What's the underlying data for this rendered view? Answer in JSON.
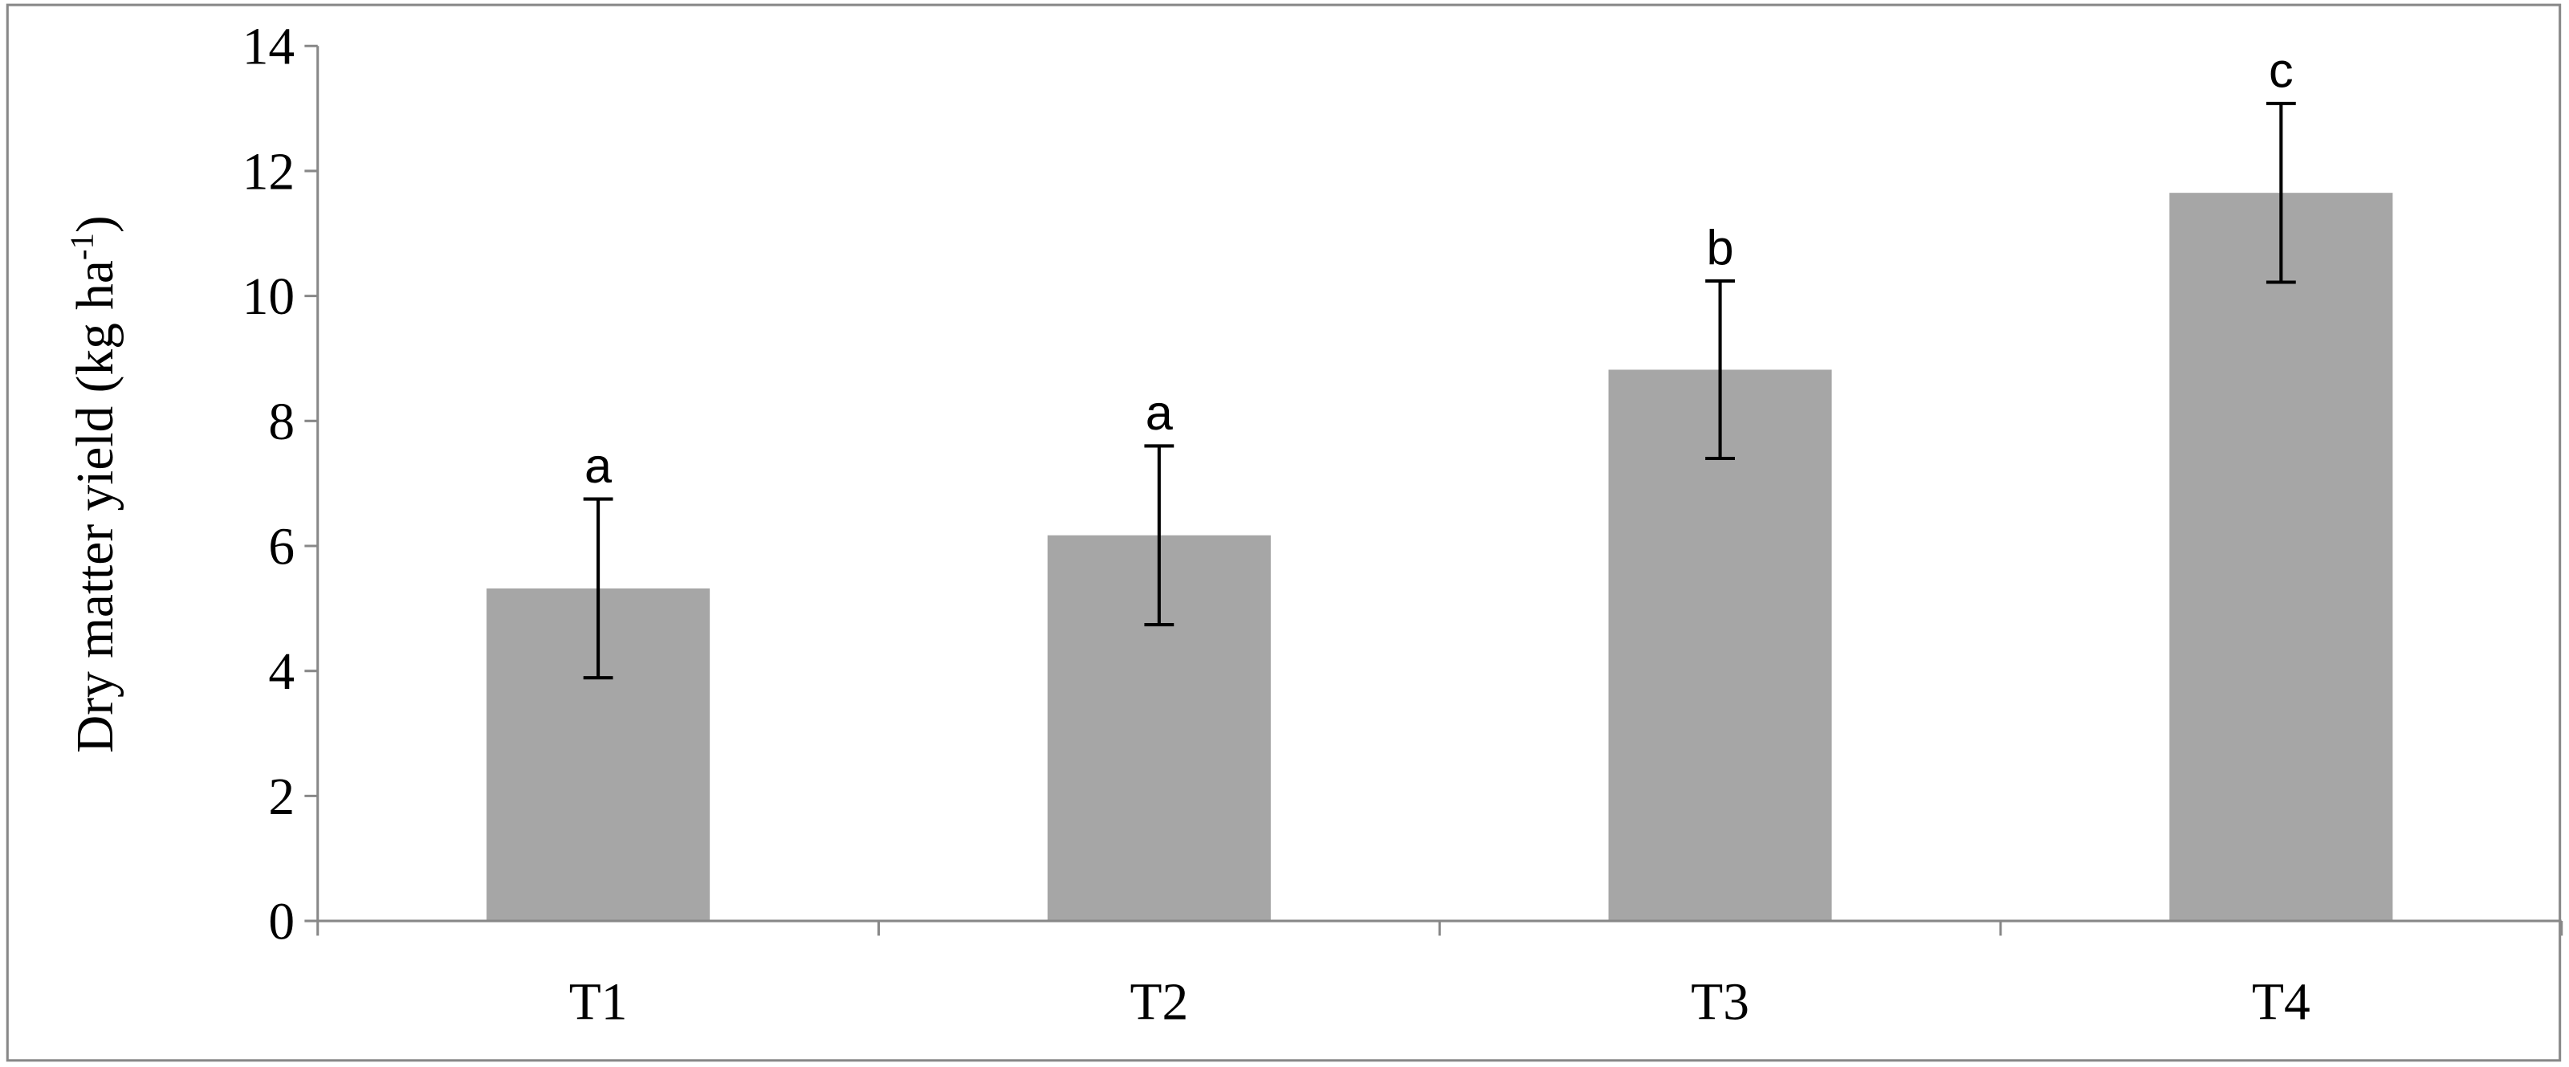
{
  "chart_data": {
    "type": "bar",
    "ylabel": {
      "text": "Dry matter yield (kg ha",
      "superscript": "-1",
      "suffix": ")"
    },
    "categories": [
      "T1",
      "T2",
      "T3",
      "T4"
    ],
    "values": [
      5.32,
      6.17,
      8.82,
      11.65
    ],
    "errors": [
      1.43,
      1.43,
      1.42,
      1.43
    ],
    "labels": [
      "a",
      "a",
      "b",
      "c"
    ],
    "color": "#a6a6a6",
    "ylim": [
      0,
      14
    ],
    "yticks": [
      0,
      2,
      4,
      6,
      8,
      10,
      12,
      14
    ],
    "grid": false
  }
}
